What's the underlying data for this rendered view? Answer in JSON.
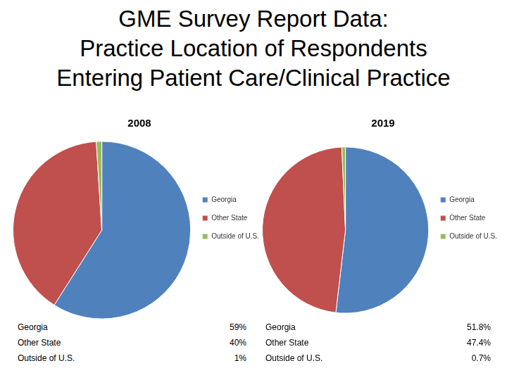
{
  "title": [
    "GME Survey Report Data:",
    "Practice Location of Respondents",
    "Entering Patient Care/Clinical Practice"
  ],
  "chart_data": [
    {
      "type": "pie",
      "title": "2008",
      "categories": [
        "Georgia",
        "Other State",
        "Outside of U.S."
      ],
      "values": [
        59,
        40,
        1
      ],
      "value_labels": [
        "59%",
        "40%",
        "1%"
      ],
      "colors": [
        "#4f81bd",
        "#c0504d",
        "#9bbb59"
      ],
      "legend": "right"
    },
    {
      "type": "pie",
      "title": "2019",
      "categories": [
        "Georgia",
        "Other State",
        "Outside of U.S."
      ],
      "values": [
        51.8,
        47.4,
        0.7
      ],
      "value_labels": [
        "51.8%",
        "47.4%",
        "0.7%"
      ],
      "colors": [
        "#4f81bd",
        "#c0504d",
        "#9bbb59"
      ],
      "legend": "right"
    }
  ]
}
